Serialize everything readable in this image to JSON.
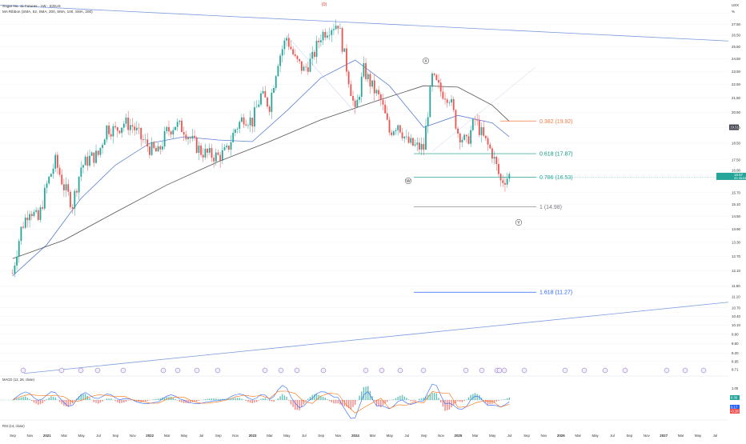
{
  "chart_data": {
    "type": "line",
    "title": "Sugar No. 11 Futures · 1W · ICEUS",
    "indicator_label": "MA Ribbon (SMA, 52, SMA, 200, SMA, 100, SMA, 200)",
    "macd_label": "MACD (12, 26, close)",
    "rsi_label": "RSI (14, close)",
    "currency": "USX",
    "price_scale": "log",
    "ylim": [
      8.71,
      29.8
    ],
    "y_ticks": [
      "28.50",
      "27.50",
      "26.50",
      "25.50",
      "24.50",
      "23.50",
      "22.50",
      "21.50",
      "20.50",
      "19.50",
      "18.50",
      "17.50",
      "16.90",
      "15.70",
      "15.10",
      "14.50",
      "13.90",
      "13.30",
      "12.70",
      "12.10",
      "11.50",
      "11.10",
      "10.70",
      "10.40",
      "10.10",
      "9.80",
      "9.50",
      "9.20",
      "8.95",
      "8.71"
    ],
    "y_unit_label": "%",
    "x_ticks": [
      "Sep",
      "Nov",
      "2021",
      "Mar",
      "May",
      "Jul",
      "Sep",
      "Nov",
      "2022",
      "Mar",
      "May",
      "Jul",
      "Sep",
      "Nov",
      "2023",
      "Mar",
      "May",
      "Jul",
      "Sep",
      "Nov",
      "2024",
      "Mar",
      "May",
      "Jul",
      "Sep",
      "Nov",
      "2025",
      "Mar",
      "May",
      "Jul",
      "Sep",
      "Nov",
      "2026",
      "Mar",
      "May",
      "Jul",
      "Sep",
      "Nov",
      "2027",
      "Mar",
      "May",
      "Jul",
      "Sep"
    ],
    "price_series": [
      {
        "date": "2020-09",
        "value": 12.0
      },
      {
        "date": "2020-10",
        "value": 13.9
      },
      {
        "date": "2020-11",
        "value": 14.9
      },
      {
        "date": "2020-12",
        "value": 14.3
      },
      {
        "date": "2021-01",
        "value": 16.1
      },
      {
        "date": "2021-02",
        "value": 17.4
      },
      {
        "date": "2021-03",
        "value": 16.0
      },
      {
        "date": "2021-04",
        "value": 15.1
      },
      {
        "date": "2021-05",
        "value": 17.1
      },
      {
        "date": "2021-06",
        "value": 17.6
      },
      {
        "date": "2021-07",
        "value": 17.8
      },
      {
        "date": "2021-08",
        "value": 19.5
      },
      {
        "date": "2021-09",
        "value": 19.3
      },
      {
        "date": "2021-10",
        "value": 19.8
      },
      {
        "date": "2021-11",
        "value": 19.6
      },
      {
        "date": "2021-12",
        "value": 18.8
      },
      {
        "date": "2022-01",
        "value": 18.2
      },
      {
        "date": "2022-02",
        "value": 17.9
      },
      {
        "date": "2022-03",
        "value": 19.2
      },
      {
        "date": "2022-04",
        "value": 19.7
      },
      {
        "date": "2022-05",
        "value": 19.4
      },
      {
        "date": "2022-06",
        "value": 18.6
      },
      {
        "date": "2022-07",
        "value": 18.0
      },
      {
        "date": "2022-08",
        "value": 17.8
      },
      {
        "date": "2022-09",
        "value": 17.7
      },
      {
        "date": "2022-10",
        "value": 18.0
      },
      {
        "date": "2022-11",
        "value": 19.4
      },
      {
        "date": "2022-12",
        "value": 20.2
      },
      {
        "date": "2023-01",
        "value": 19.9
      },
      {
        "date": "2023-02",
        "value": 21.7
      },
      {
        "date": "2023-03",
        "value": 21.0
      },
      {
        "date": "2023-04",
        "value": 24.4
      },
      {
        "date": "2023-05",
        "value": 26.3
      },
      {
        "date": "2023-06",
        "value": 24.4
      },
      {
        "date": "2023-07",
        "value": 23.6
      },
      {
        "date": "2023-08",
        "value": 24.5
      },
      {
        "date": "2023-09",
        "value": 26.5
      },
      {
        "date": "2023-10",
        "value": 27.2
      },
      {
        "date": "2023-11",
        "value": 27.6
      },
      {
        "date": "2023-12",
        "value": 23.8
      },
      {
        "date": "2024-01",
        "value": 20.4
      },
      {
        "date": "2024-02",
        "value": 23.6
      },
      {
        "date": "2024-03",
        "value": 22.3
      },
      {
        "date": "2024-04",
        "value": 21.3
      },
      {
        "date": "2024-05",
        "value": 19.2
      },
      {
        "date": "2024-06",
        "value": 19.8
      },
      {
        "date": "2024-07",
        "value": 18.6
      },
      {
        "date": "2024-08",
        "value": 18.3
      },
      {
        "date": "2024-09",
        "value": 18.2
      },
      {
        "date": "2024-10",
        "value": 23.0
      },
      {
        "date": "2024-11",
        "value": 22.0
      },
      {
        "date": "2024-12",
        "value": 21.6
      },
      {
        "date": "2025-01",
        "value": 19.2
      },
      {
        "date": "2025-02",
        "value": 18.5
      },
      {
        "date": "2025-03",
        "value": 20.0
      },
      {
        "date": "2025-04",
        "value": 18.8
      },
      {
        "date": "2025-05",
        "value": 17.9
      },
      {
        "date": "2025-06",
        "value": 16.3
      },
      {
        "date": "2025-07",
        "value": 16.6
      }
    ],
    "sma_fast": [
      {
        "date": "2020-09",
        "value": 11.9
      },
      {
        "date": "2021-01",
        "value": 13.2
      },
      {
        "date": "2021-05",
        "value": 15.4
      },
      {
        "date": "2021-09",
        "value": 17.2
      },
      {
        "date": "2022-01",
        "value": 18.5
      },
      {
        "date": "2022-05",
        "value": 18.9
      },
      {
        "date": "2022-09",
        "value": 18.7
      },
      {
        "date": "2023-01",
        "value": 18.6
      },
      {
        "date": "2023-05",
        "value": 20.6
      },
      {
        "date": "2023-09",
        "value": 23.0
      },
      {
        "date": "2024-01",
        "value": 24.4
      },
      {
        "date": "2024-05",
        "value": 22.4
      },
      {
        "date": "2024-09",
        "value": 19.5
      },
      {
        "date": "2025-01",
        "value": 20.3
      },
      {
        "date": "2025-05",
        "value": 19.8
      },
      {
        "date": "2025-07",
        "value": 18.9
      }
    ],
    "sma_slow": [
      {
        "date": "2020-09",
        "value": 12.6
      },
      {
        "date": "2021-03",
        "value": 13.4
      },
      {
        "date": "2021-09",
        "value": 14.7
      },
      {
        "date": "2022-03",
        "value": 16.1
      },
      {
        "date": "2022-09",
        "value": 17.4
      },
      {
        "date": "2023-03",
        "value": 18.6
      },
      {
        "date": "2023-09",
        "value": 20.0
      },
      {
        "date": "2024-03",
        "value": 21.2
      },
      {
        "date": "2024-09",
        "value": 22.4
      },
      {
        "date": "2025-01",
        "value": 22.3
      },
      {
        "date": "2025-05",
        "value": 21.0
      },
      {
        "date": "2025-07",
        "value": 19.9
      }
    ],
    "last_price": {
      "value": "16.57",
      "countdown": "2D 05:53"
    },
    "prev_label": "19.51",
    "fib_levels": [
      {
        "ratio": "0.382",
        "value": "19.92",
        "label": "0.382 (19.92)",
        "color": "#f57c41"
      },
      {
        "ratio": "0.618",
        "value": "17.87",
        "label": "0.618 (17.87)",
        "color": "#089981"
      },
      {
        "ratio": "0.786",
        "value": "16.53",
        "label": "0.786 (16.53)",
        "color": "#26a69a"
      },
      {
        "ratio": "1",
        "value": "14.98",
        "label": "1 (14.98)",
        "color": "#787b86"
      },
      {
        "ratio": "1.618",
        "value": "11.27",
        "label": "1.618 (11.27)",
        "color": "#2962ff"
      }
    ],
    "wave_labels": [
      {
        "text": "(0)",
        "color": "#e53935"
      },
      {
        "text": "X",
        "color": "#333333"
      },
      {
        "text": "W",
        "color": "#333333"
      },
      {
        "text": "Y",
        "color": "#333333"
      }
    ],
    "macd_values": [
      "0.36",
      "0.17",
      "-0.18"
    ],
    "event_marker_count": 30,
    "colors": {
      "up": "#26a69a",
      "down": "#ef5350",
      "sma_fast": "#5b7fd6",
      "sma_slow": "#555555",
      "trendline": "#7a9be0",
      "price_line": "#26a69a"
    }
  }
}
